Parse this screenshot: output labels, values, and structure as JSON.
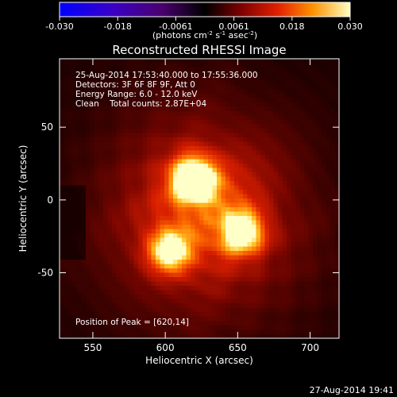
{
  "chart_data": {
    "type": "heatmap",
    "title": "Reconstructed RHESSI Image",
    "xlabel": "Heliocentric X (arcsec)",
    "ylabel": "Heliocentric Y (arcsec)",
    "xlim": [
      527,
      720
    ],
    "ylim": [
      -95,
      97
    ],
    "xticks": [
      550,
      600,
      650,
      700
    ],
    "yticks": [
      50,
      0,
      -50
    ],
    "colorbar": {
      "ticks": [
        "-0.030",
        "-0.018",
        "-0.0061",
        "0.0061",
        "0.018",
        "0.030"
      ],
      "range": [
        -0.03,
        0.03
      ],
      "unit_main": "(photons cm",
      "unit_exp1": "-2",
      "unit_mid": " s",
      "unit_exp2": "-1",
      "unit_mid2": " asec",
      "unit_exp3": "-2",
      "unit_end": ")"
    },
    "annotations": [
      "25-Aug-2014 17:53:40.000 to 17:55:36.000",
      "Detectors: 3F 6F 8F 9F, Att 0",
      "Energy Range: 6.0 - 12.0 keV",
      "Clean    Total counts: 2.87E+04"
    ],
    "peak_label": "Position of Peak = [620,14]",
    "sources": [
      {
        "x": 620,
        "y": 14,
        "peak": 0.03
      },
      {
        "x": 653,
        "y": -22,
        "peak": 0.022
      },
      {
        "x": 603,
        "y": -35,
        "peak": 0.021
      }
    ]
  },
  "footer_timestamp": "27-Aug-2014 19:41",
  "colors": {
    "background": "#000000",
    "text": "#ffffff"
  }
}
